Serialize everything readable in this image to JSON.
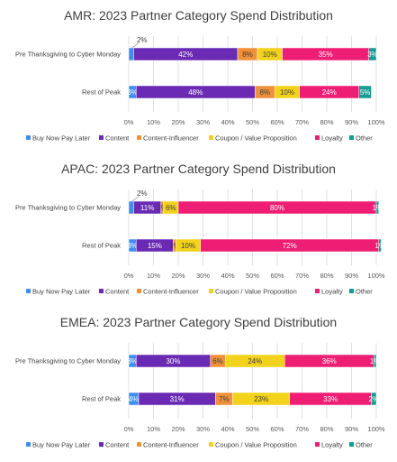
{
  "chart_data": [
    {
      "type": "bar",
      "orientation": "horizontal",
      "stacked": "percent",
      "title": "AMR: 2023 Partner Category Spend Distribution",
      "categories": [
        "Pre Thanksgiving to Cyber Monday",
        "Rest of Peak"
      ],
      "x_ticks": [
        "0%",
        "10%",
        "20%",
        "30%",
        "40%",
        "50%",
        "60%",
        "70%",
        "80%",
        "90%",
        "100%"
      ],
      "xlim": [
        0,
        100
      ],
      "grid": true,
      "legend": "bottom",
      "series": [
        {
          "name": "Buy Now Pay Later",
          "values": [
            2,
            3
          ],
          "labels": [
            "2%",
            "3%"
          ]
        },
        {
          "name": "Content",
          "values": [
            42,
            48
          ],
          "labels": [
            "42%",
            "48%"
          ]
        },
        {
          "name": "Content-Influencer",
          "values": [
            8,
            8
          ],
          "labels": [
            "8%",
            "8%"
          ]
        },
        {
          "name": "Coupon / Value Proposition",
          "values": [
            10,
            10
          ],
          "labels": [
            "10%",
            "10%"
          ]
        },
        {
          "name": "Loyalty",
          "values": [
            35,
            24
          ],
          "labels": [
            "35%",
            "24%"
          ]
        },
        {
          "name": "Other",
          "values": [
            3,
            5
          ],
          "labels": [
            "3%",
            "5%"
          ]
        }
      ]
    },
    {
      "type": "bar",
      "orientation": "horizontal",
      "stacked": "percent",
      "title": "APAC: 2023 Partner Category Spend Distribution",
      "categories": [
        "Pre Thanksgiving to Cyber Monday",
        "Rest of Peak"
      ],
      "x_ticks": [
        "0%",
        "10%",
        "20%",
        "30%",
        "40%",
        "50%",
        "60%",
        "70%",
        "80%",
        "90%",
        "100%"
      ],
      "xlim": [
        0,
        100
      ],
      "grid": true,
      "legend": "bottom",
      "series": [
        {
          "name": "Buy Now Pay Later",
          "values": [
            2,
            3
          ],
          "labels": [
            "2%",
            "3%"
          ]
        },
        {
          "name": "Content",
          "values": [
            11,
            15
          ],
          "labels": [
            "11%",
            "15%"
          ]
        },
        {
          "name": "Content-Influencer",
          "values": [
            1,
            1
          ],
          "labels": [
            "1%",
            "1%"
          ]
        },
        {
          "name": "Coupon / Value Proposition",
          "values": [
            6,
            10
          ],
          "labels": [
            "6%",
            "10%"
          ]
        },
        {
          "name": "Loyalty",
          "values": [
            80,
            72
          ],
          "labels": [
            "80%",
            "72%"
          ]
        },
        {
          "name": "Other",
          "values": [
            1,
            1
          ],
          "labels": [
            "1%",
            "1%"
          ]
        }
      ]
    },
    {
      "type": "bar",
      "orientation": "horizontal",
      "stacked": "percent",
      "title": "EMEA: 2023 Partner Category Spend Distribution",
      "categories": [
        "Pre Thanksgiving to Cyber Monday",
        "Rest of Peak"
      ],
      "x_ticks": [
        "0%",
        "10%",
        "20%",
        "30%",
        "40%",
        "50%",
        "60%",
        "70%",
        "80%",
        "90%",
        "100%"
      ],
      "xlim": [
        0,
        100
      ],
      "grid": true,
      "legend": "bottom",
      "series": [
        {
          "name": "Buy Now Pay Later",
          "values": [
            3,
            4
          ],
          "labels": [
            "3%",
            "4%"
          ]
        },
        {
          "name": "Content",
          "values": [
            30,
            31
          ],
          "labels": [
            "30%",
            "31%"
          ]
        },
        {
          "name": "Content-Influencer",
          "values": [
            6,
            7
          ],
          "labels": [
            "6%",
            "7%"
          ]
        },
        {
          "name": "Coupon / Value Proposition",
          "values": [
            24,
            23
          ],
          "labels": [
            "24%",
            "23%"
          ]
        },
        {
          "name": "Loyalty",
          "values": [
            36,
            33
          ],
          "labels": [
            "36%",
            "33%"
          ]
        },
        {
          "name": "Other",
          "values": [
            1,
            2
          ],
          "labels": [
            "1%",
            "2%"
          ]
        }
      ]
    }
  ],
  "colors": {
    "Buy Now Pay Later": "#3d8ef0",
    "Content": "#6a2ab3",
    "Content-Influencer": "#f0913a",
    "Coupon / Value Proposition": "#f2d21a",
    "Loyalty": "#ee1e74",
    "Other": "#169b93"
  },
  "label_colors": {
    "Buy Now Pay Later": "#ffffff",
    "Content": "#ffffff",
    "Content-Influencer": "#404040",
    "Coupon / Value Proposition": "#404040",
    "Loyalty": "#ffffff",
    "Other": "#ffffff"
  }
}
